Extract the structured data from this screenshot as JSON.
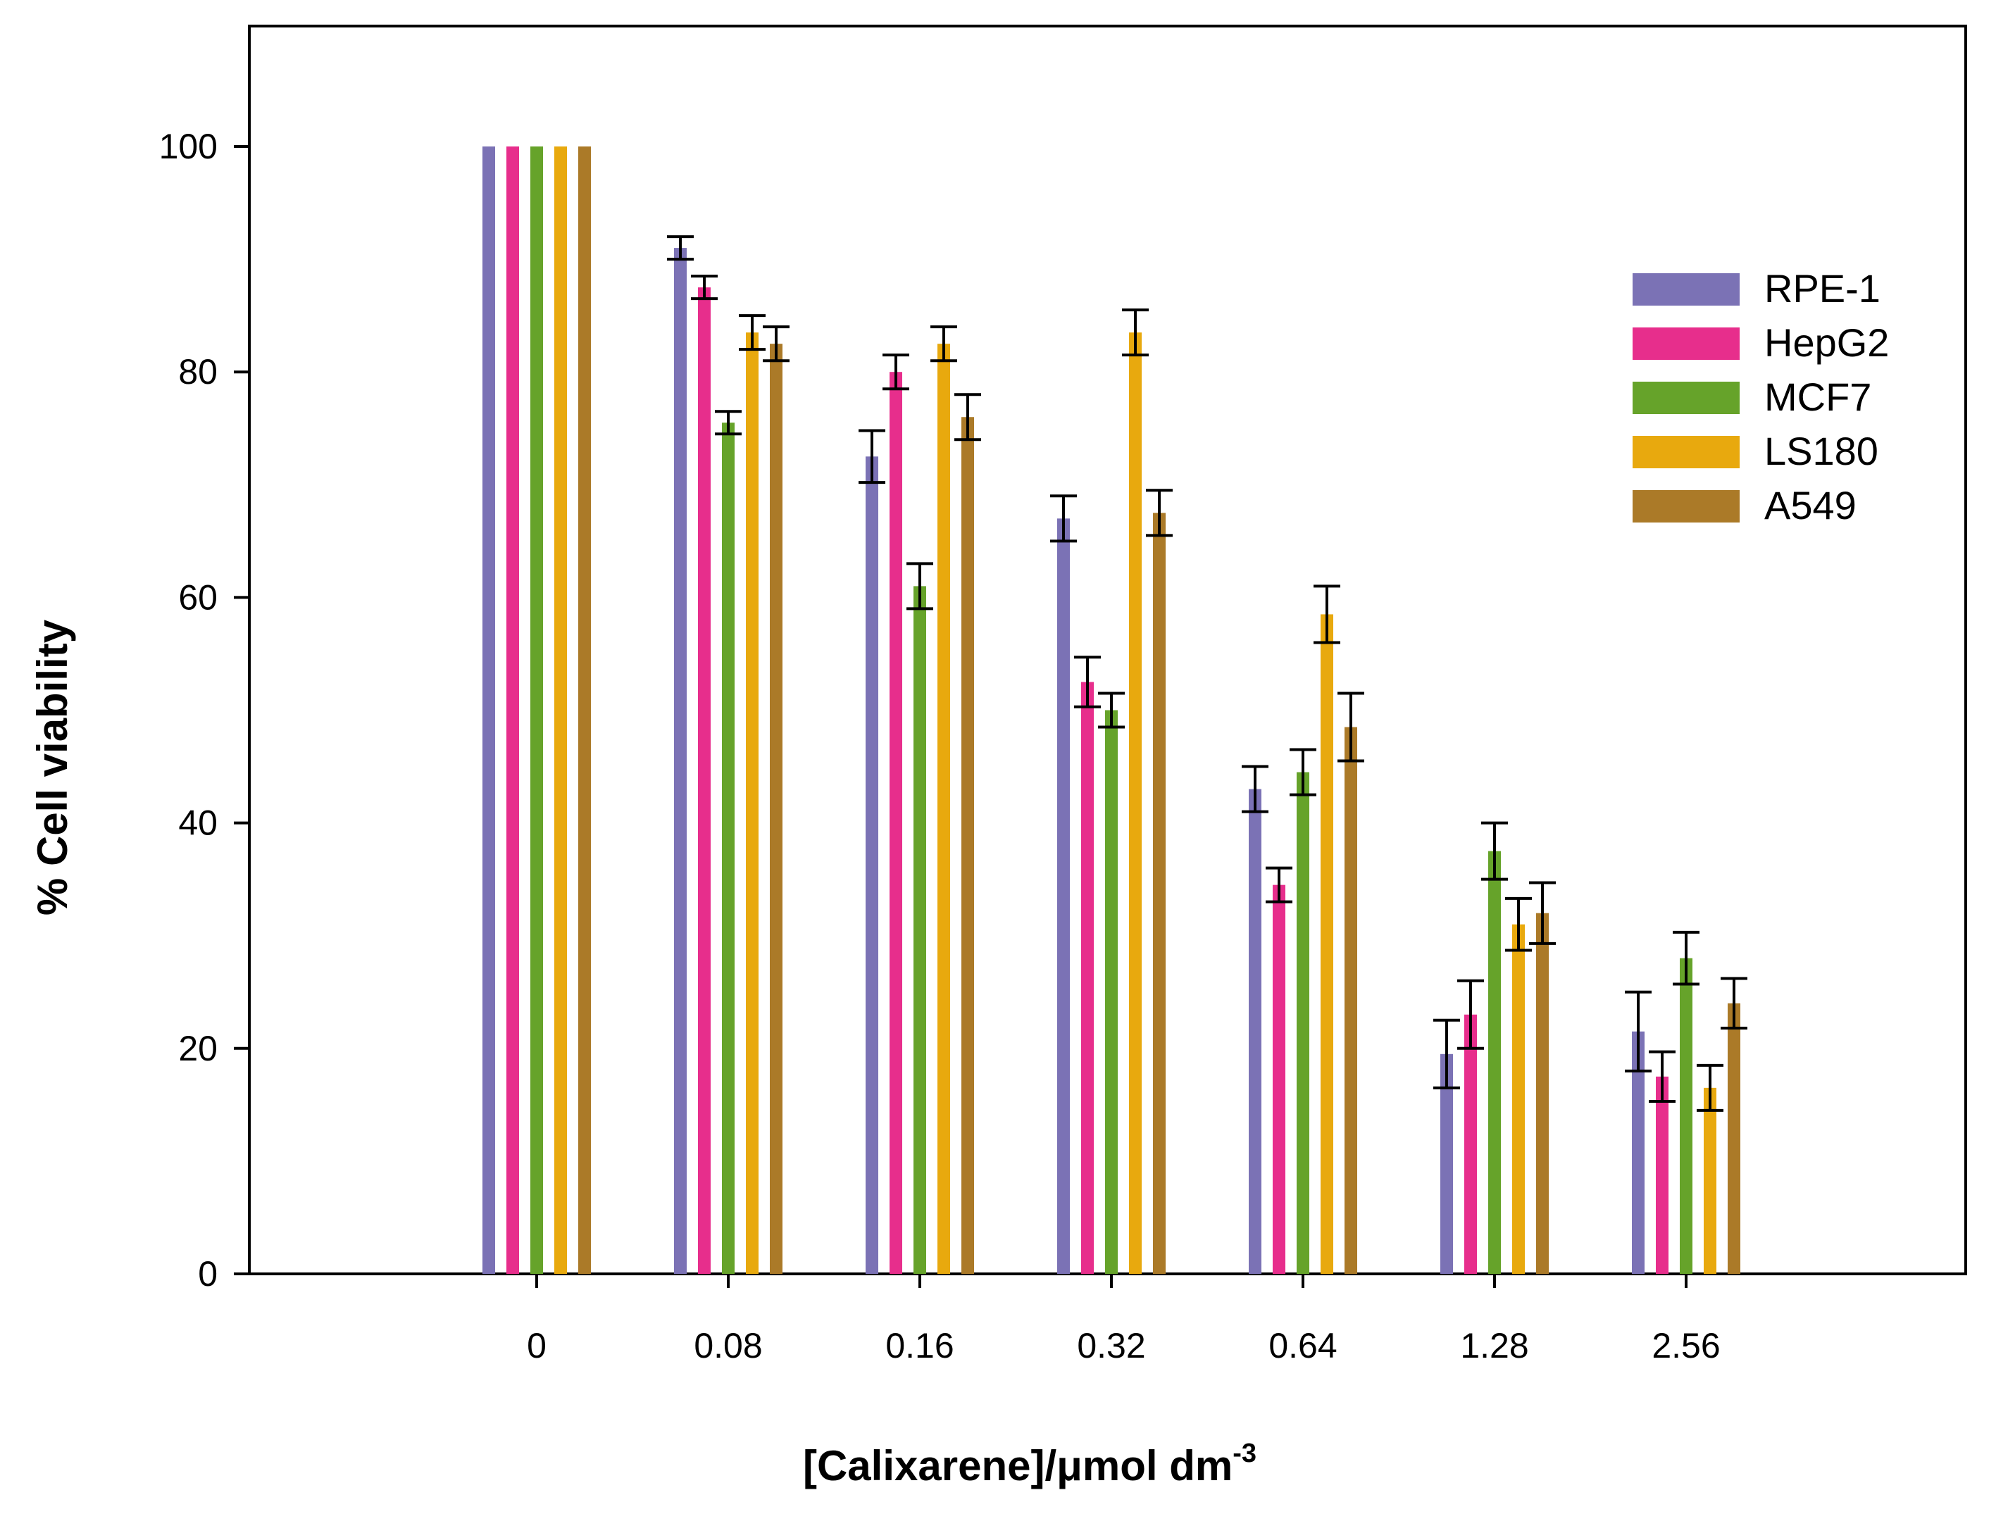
{
  "chart_data": {
    "type": "bar",
    "title": "",
    "xlabel": "[Calixarene]/μmol dm",
    "xlabel_superscript": "-3",
    "ylabel": "% Cell viability",
    "ylim": [
      0,
      110
    ],
    "yticks": [
      "0",
      "20",
      "40",
      "60",
      "80",
      "100"
    ],
    "categories": [
      "0",
      "0.08",
      "0.16",
      "0.32",
      "0.64",
      "1.28",
      "2.56"
    ],
    "grid": false,
    "legend_position": "top-right",
    "series": [
      {
        "name": "RPE-1",
        "color": "#7b72b5",
        "values": [
          100,
          91,
          72.5,
          67,
          43,
          19.5,
          21.5
        ],
        "errors": [
          0,
          1,
          2.3,
          2,
          2,
          3,
          3.5
        ]
      },
      {
        "name": "HepG2",
        "color": "#e72e8c",
        "values": [
          100,
          87.5,
          80,
          52.5,
          34.5,
          23,
          17.5
        ],
        "errors": [
          0,
          1,
          1.5,
          2.2,
          1.5,
          3,
          2.2
        ]
      },
      {
        "name": "MCF7",
        "color": "#66a32a",
        "values": [
          100,
          75.5,
          61,
          50,
          44.5,
          37.5,
          28
        ],
        "errors": [
          0,
          1,
          2,
          1.5,
          2,
          2.5,
          2.3
        ]
      },
      {
        "name": "LS180",
        "color": "#e8a90e",
        "values": [
          100,
          83.5,
          82.5,
          83.5,
          58.5,
          31,
          16.5
        ],
        "errors": [
          0,
          1.5,
          1.5,
          2,
          2.5,
          2.3,
          2
        ]
      },
      {
        "name": "A549",
        "color": "#ab7a28",
        "values": [
          100,
          82.5,
          76,
          67.5,
          48.5,
          32,
          24
        ],
        "errors": [
          0,
          1.5,
          2,
          2,
          3,
          2.7,
          2.2
        ]
      }
    ]
  }
}
